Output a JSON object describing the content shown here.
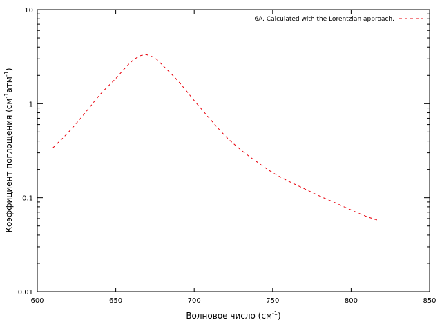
{
  "chart_data": {
    "type": "line",
    "xlabel": {
      "text": "Волновое число (см",
      "sup": "-1",
      "tail": ")"
    },
    "ylabel": {
      "text1": "Коэффициент поглощения (см",
      "sup1": "-1",
      "text2": "атм",
      "sup2": "-1",
      "tail": ")"
    },
    "xlim": [
      600,
      850
    ],
    "ylim": [
      0.01,
      10
    ],
    "yscale": "log",
    "x_ticks": [
      600,
      650,
      700,
      750,
      800,
      850
    ],
    "y_ticks": [
      {
        "value": 0.01,
        "label": "0.01"
      },
      {
        "value": 0.1,
        "label": "0.1"
      },
      {
        "value": 1,
        "label": "1"
      },
      {
        "value": 10,
        "label": "10"
      }
    ],
    "grid": false,
    "legend_position": "top-right",
    "series": [
      {
        "name": "6A. Calculated with the Lorentzian approach.",
        "color": "#e8000b",
        "dash": "dashed",
        "x": [
          610,
          620,
          630,
          640,
          650,
          655,
          660,
          665,
          668,
          670,
          675,
          680,
          690,
          700,
          710,
          720,
          730,
          740,
          750,
          760,
          770,
          780,
          790,
          800,
          810,
          818
        ],
        "y": [
          0.34,
          0.5,
          0.78,
          1.25,
          1.85,
          2.3,
          2.8,
          3.2,
          3.28,
          3.3,
          3.05,
          2.55,
          1.72,
          1.08,
          0.69,
          0.45,
          0.32,
          0.24,
          0.185,
          0.15,
          0.125,
          0.104,
          0.088,
          0.074,
          0.063,
          0.057
        ]
      }
    ]
  }
}
